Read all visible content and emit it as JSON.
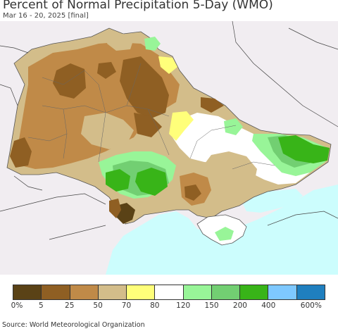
{
  "title": "Percent of Normal Precipitation 5-Day (WMO)",
  "subtitle": "Mar 16 - 20, 2025 [final]",
  "legend": {
    "colors": [
      "#5a4216",
      "#8f5f23",
      "#c08a48",
      "#d3bd8a",
      "#ffff7a",
      "#ffffff",
      "#98f598",
      "#72cf72",
      "#38b418",
      "#7ec8ff",
      "#1f7fbf"
    ],
    "ticks": [
      "0%",
      "5",
      "25",
      "50",
      "70",
      "80",
      "120",
      "150",
      "200",
      "400",
      "600%"
    ]
  },
  "source": "Source: World Meteorological Organization"
}
